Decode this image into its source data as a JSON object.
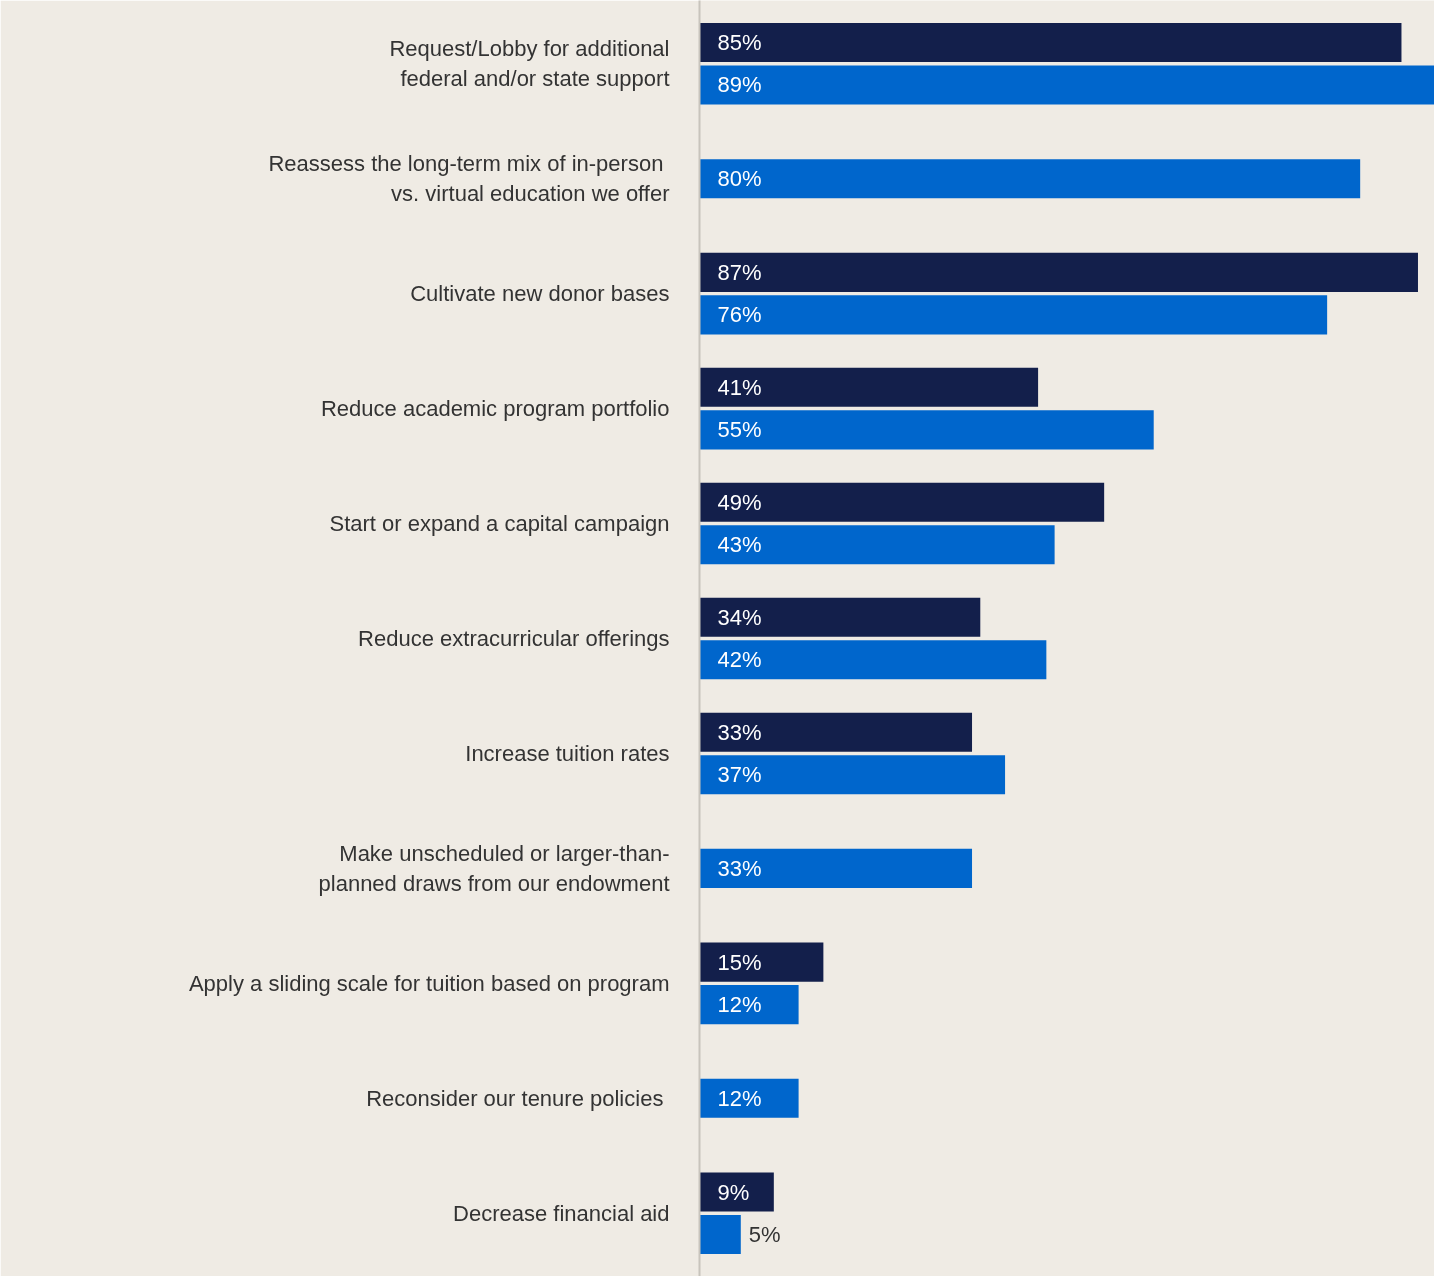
{
  "chart_data": {
    "type": "bar",
    "orientation": "horizontal",
    "categories": [
      "Request/Lobby for additional\nfederal and/or state support",
      "Reassess the long-term mix of in-person \nvs. virtual education we offer",
      "Cultivate new donor bases",
      "Reduce academic program portfolio",
      "Start or expand a capital campaign",
      "Reduce extracurricular offerings",
      "Increase tuition rates",
      "Make unscheduled or larger-than-\nplanned draws from our endowment",
      "Apply a sliding scale for tuition based on program",
      "Reconsider our tenure policies ",
      "Decrease financial aid"
    ],
    "series": [
      {
        "color": "#131f4b",
        "values": [
          85,
          null,
          87,
          41,
          49,
          34,
          33,
          null,
          15,
          null,
          9
        ],
        "value_labels": [
          "85%",
          null,
          "87%",
          "41%",
          "49%",
          "34%",
          "33%",
          null,
          "15%",
          null,
          "9%"
        ]
      },
      {
        "color": "#0066cc",
        "values": [
          89,
          80,
          76,
          55,
          43,
          42,
          37,
          33,
          12,
          12,
          5
        ],
        "value_labels": [
          "89%",
          "80%",
          "76%",
          "55%",
          "43%",
          "42%",
          "37%",
          "33%",
          "12%",
          "12%",
          "5%"
        ]
      }
    ],
    "xlim": [
      0,
      89
    ],
    "tick_labels": "y"
  }
}
